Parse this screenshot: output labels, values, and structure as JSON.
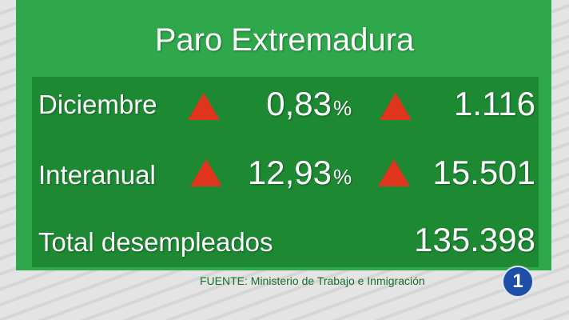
{
  "header": {
    "title": "Paro Extremadura"
  },
  "table": {
    "rows": [
      {
        "label": "Diciembre",
        "percent": "0,83",
        "percent_unit": "%",
        "count": "1.116"
      },
      {
        "label": "Interanual",
        "percent": "12,93",
        "percent_unit": "%",
        "count": "15.501"
      },
      {
        "label": "Total desempleados",
        "count": "135.398"
      }
    ]
  },
  "footer": {
    "source": "FUENTE: Ministerio de Trabajo e Inmigración",
    "logo": "1"
  }
}
